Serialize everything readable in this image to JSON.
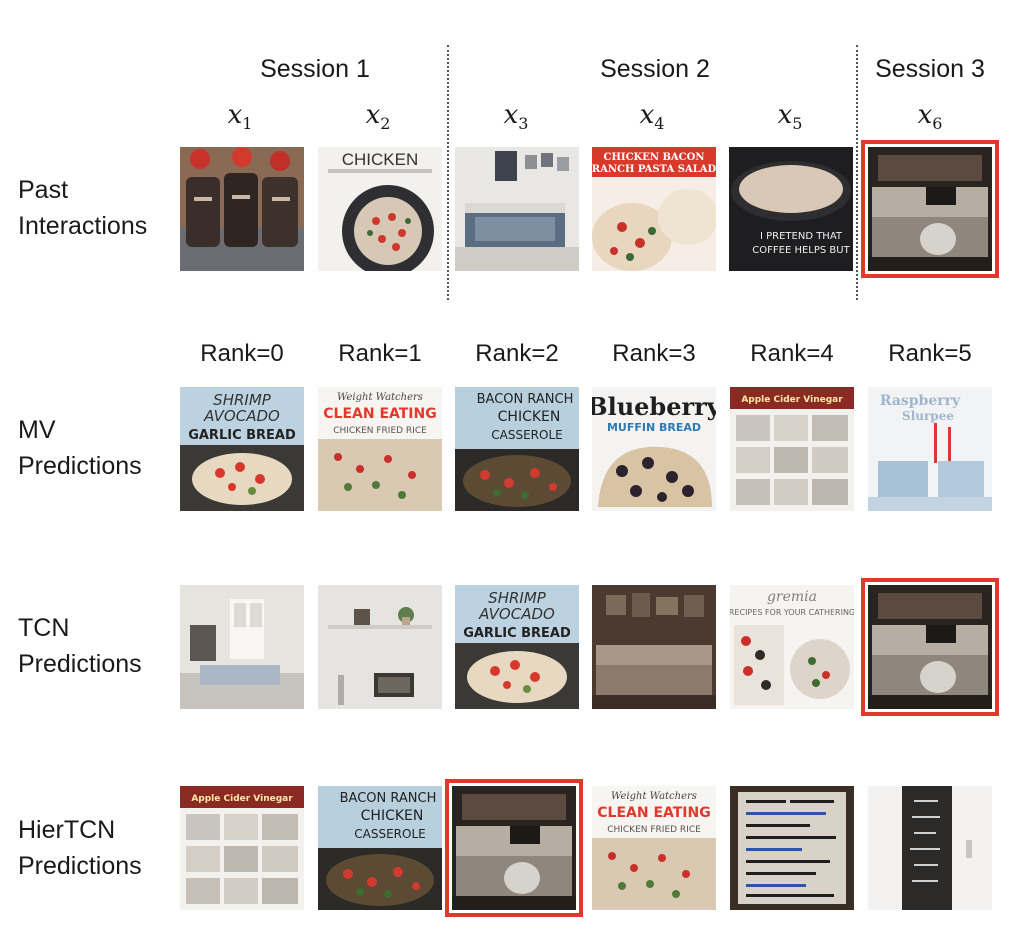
{
  "sessions": [
    "Session 1",
    "Session 2",
    "Session 3"
  ],
  "items": [
    {
      "id": "x",
      "sub": "1"
    },
    {
      "id": "x",
      "sub": "2"
    },
    {
      "id": "x",
      "sub": "3"
    },
    {
      "id": "x",
      "sub": "4"
    },
    {
      "id": "x",
      "sub": "5"
    },
    {
      "id": "x",
      "sub": "6"
    }
  ],
  "rows": {
    "past": {
      "line1": "Past",
      "line2": "Interactions"
    },
    "mv": {
      "line1": "MV",
      "line2": "Predictions"
    },
    "tcn": {
      "line1": "TCN",
      "line2": "Predictions"
    },
    "hier": {
      "line1": "HierTCN",
      "line2": "Predictions"
    }
  },
  "ranks": [
    "Rank=0",
    "Rank=1",
    "Rank=2",
    "Rank=3",
    "Rank=4",
    "Rank=5"
  ],
  "highlight_color": "#e0392c",
  "tiles": {
    "x2": {
      "l1": "CHICKEN"
    },
    "x4": {
      "l1": "CHICKEN BACON",
      "l2": "RANCH PASTA SALAD"
    },
    "x5": {
      "l1": "I PRETEND THAT",
      "l2": "COFFEE HELPS BUT"
    },
    "shrimp": {
      "l1": "SHRIMP",
      "l2": "AVOCADO",
      "l3": "GARLIC BREAD"
    },
    "clean": {
      "l1": "Weight Watchers",
      "l2": "CLEAN EATING",
      "l3": "CHICKEN FRIED RICE"
    },
    "bacon": {
      "l1": "BACON RANCH",
      "l2": "CHICKEN",
      "l3": "CASSEROLE"
    },
    "blueberry": {
      "l1": "Blueberry",
      "l2": "MUFFIN BREAD"
    },
    "cider": {
      "l1": "Apple Cider Vinegar"
    },
    "raspberry": {
      "l1": "Raspberry",
      "l2": "Slurpee"
    },
    "catering": {
      "l1": "RECIPES FOR YOUR CATHERING"
    }
  }
}
